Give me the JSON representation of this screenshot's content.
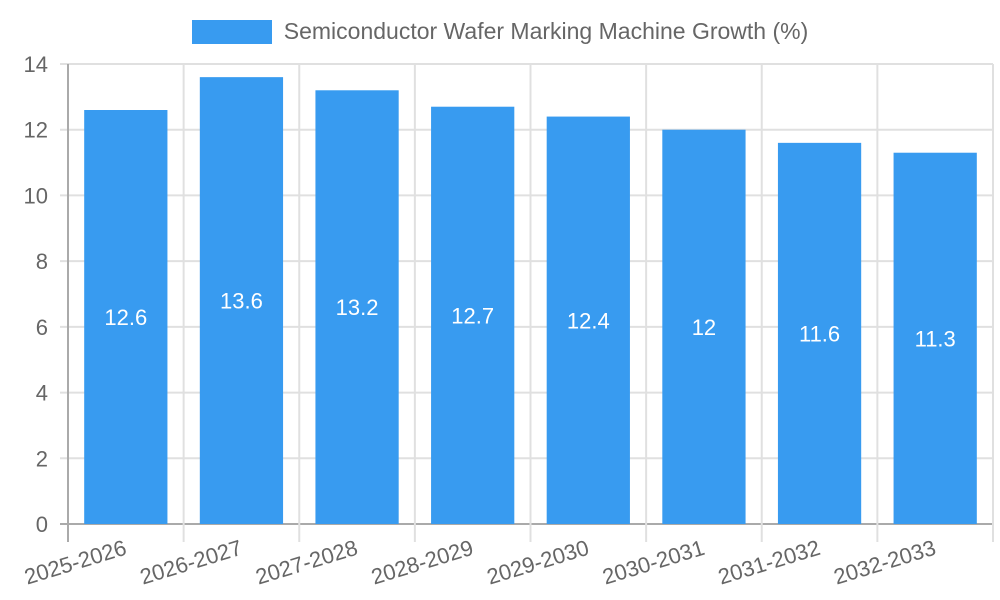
{
  "chart_data": {
    "type": "bar",
    "title": "",
    "xlabel": "",
    "ylabel": "",
    "legend": {
      "position": "top",
      "entries": [
        "Semiconductor Wafer Marking Machine Growth (%)"
      ]
    },
    "categories": [
      "2025-2026",
      "2026-2027",
      "2027-2028",
      "2028-2029",
      "2029-2030",
      "2030-2031",
      "2031-2032",
      "2032-2033"
    ],
    "series": [
      {
        "name": "Semiconductor Wafer Marking Machine Growth (%)",
        "values": [
          12.6,
          13.6,
          13.2,
          12.7,
          12.4,
          12,
          11.6,
          11.3
        ],
        "color": "#389bf0"
      }
    ],
    "data_labels": [
      "12.6",
      "13.6",
      "13.2",
      "12.7",
      "12.4",
      "12",
      "11.6",
      "11.3"
    ],
    "ylim": [
      0,
      14
    ],
    "yticks": [
      0,
      2,
      4,
      6,
      8,
      10,
      12,
      14
    ],
    "grid": true
  },
  "legend": {
    "label": "Semiconductor Wafer Marking Machine Growth (%)",
    "color": "#389bf0"
  }
}
